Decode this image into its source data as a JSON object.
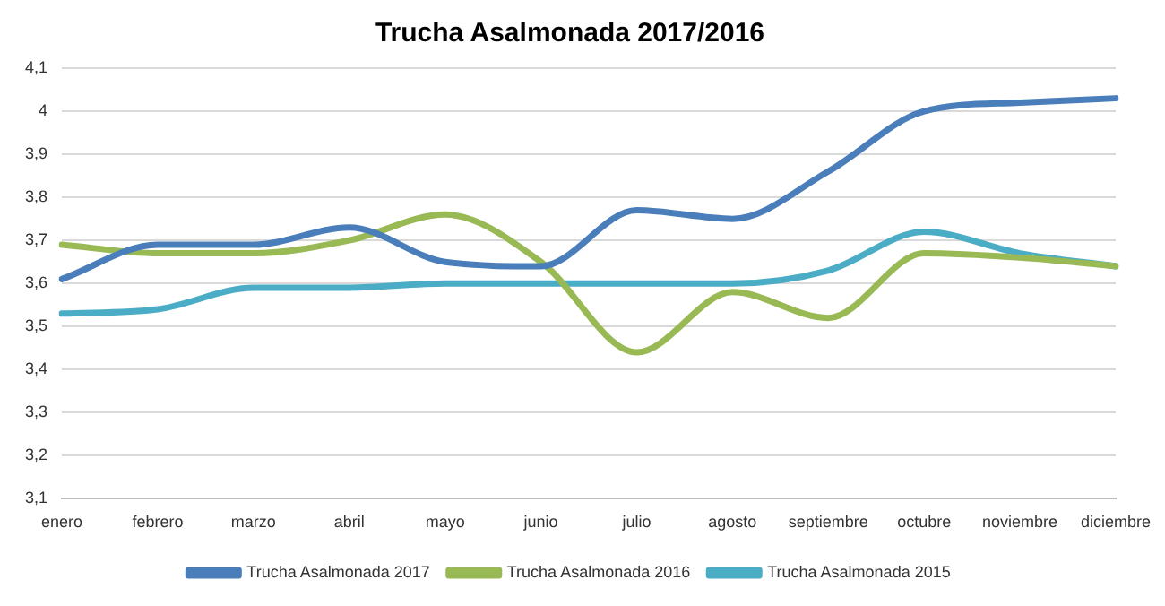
{
  "chart_data": {
    "type": "line",
    "title": "Trucha Asalmonada 2017/2016",
    "categories": [
      "enero",
      "febrero",
      "marzo",
      "abril",
      "mayo",
      "junio",
      "julio",
      "agosto",
      "septiembre",
      "octubre",
      "noviembre",
      "diciembre"
    ],
    "series": [
      {
        "name": "Trucha Asalmonada 2017",
        "color": "#4a7ebb",
        "values": [
          3.61,
          3.69,
          3.69,
          3.73,
          3.65,
          3.64,
          3.77,
          3.75,
          3.86,
          4.0,
          4.02,
          4.03
        ]
      },
      {
        "name": "Trucha Asalmonada 2016",
        "color": "#98b954",
        "values": [
          3.69,
          3.67,
          3.67,
          3.7,
          3.76,
          3.65,
          3.44,
          3.58,
          3.52,
          3.67,
          3.66,
          3.64
        ]
      },
      {
        "name": "Trucha Asalmonada 2015",
        "color": "#4bacc6",
        "values": [
          3.53,
          3.54,
          3.59,
          3.59,
          3.6,
          3.6,
          3.6,
          3.6,
          3.63,
          3.72,
          3.67,
          3.64
        ]
      }
    ],
    "ylim": [
      3.1,
      4.1
    ],
    "yticks": [
      {
        "value": 3.1,
        "label": "3,1"
      },
      {
        "value": 3.2,
        "label": "3,2"
      },
      {
        "value": 3.3,
        "label": "3,3"
      },
      {
        "value": 3.4,
        "label": "3,4"
      },
      {
        "value": 3.5,
        "label": "3,5"
      },
      {
        "value": 3.6,
        "label": "3,6"
      },
      {
        "value": 3.7,
        "label": "3,7"
      },
      {
        "value": 3.8,
        "label": "3,8"
      },
      {
        "value": 3.9,
        "label": "3,9"
      },
      4,
      {
        "value": 4.1,
        "label": "4,1"
      }
    ],
    "grid": "y",
    "legend": "bottom",
    "marker": "none",
    "line_style": "solid"
  }
}
